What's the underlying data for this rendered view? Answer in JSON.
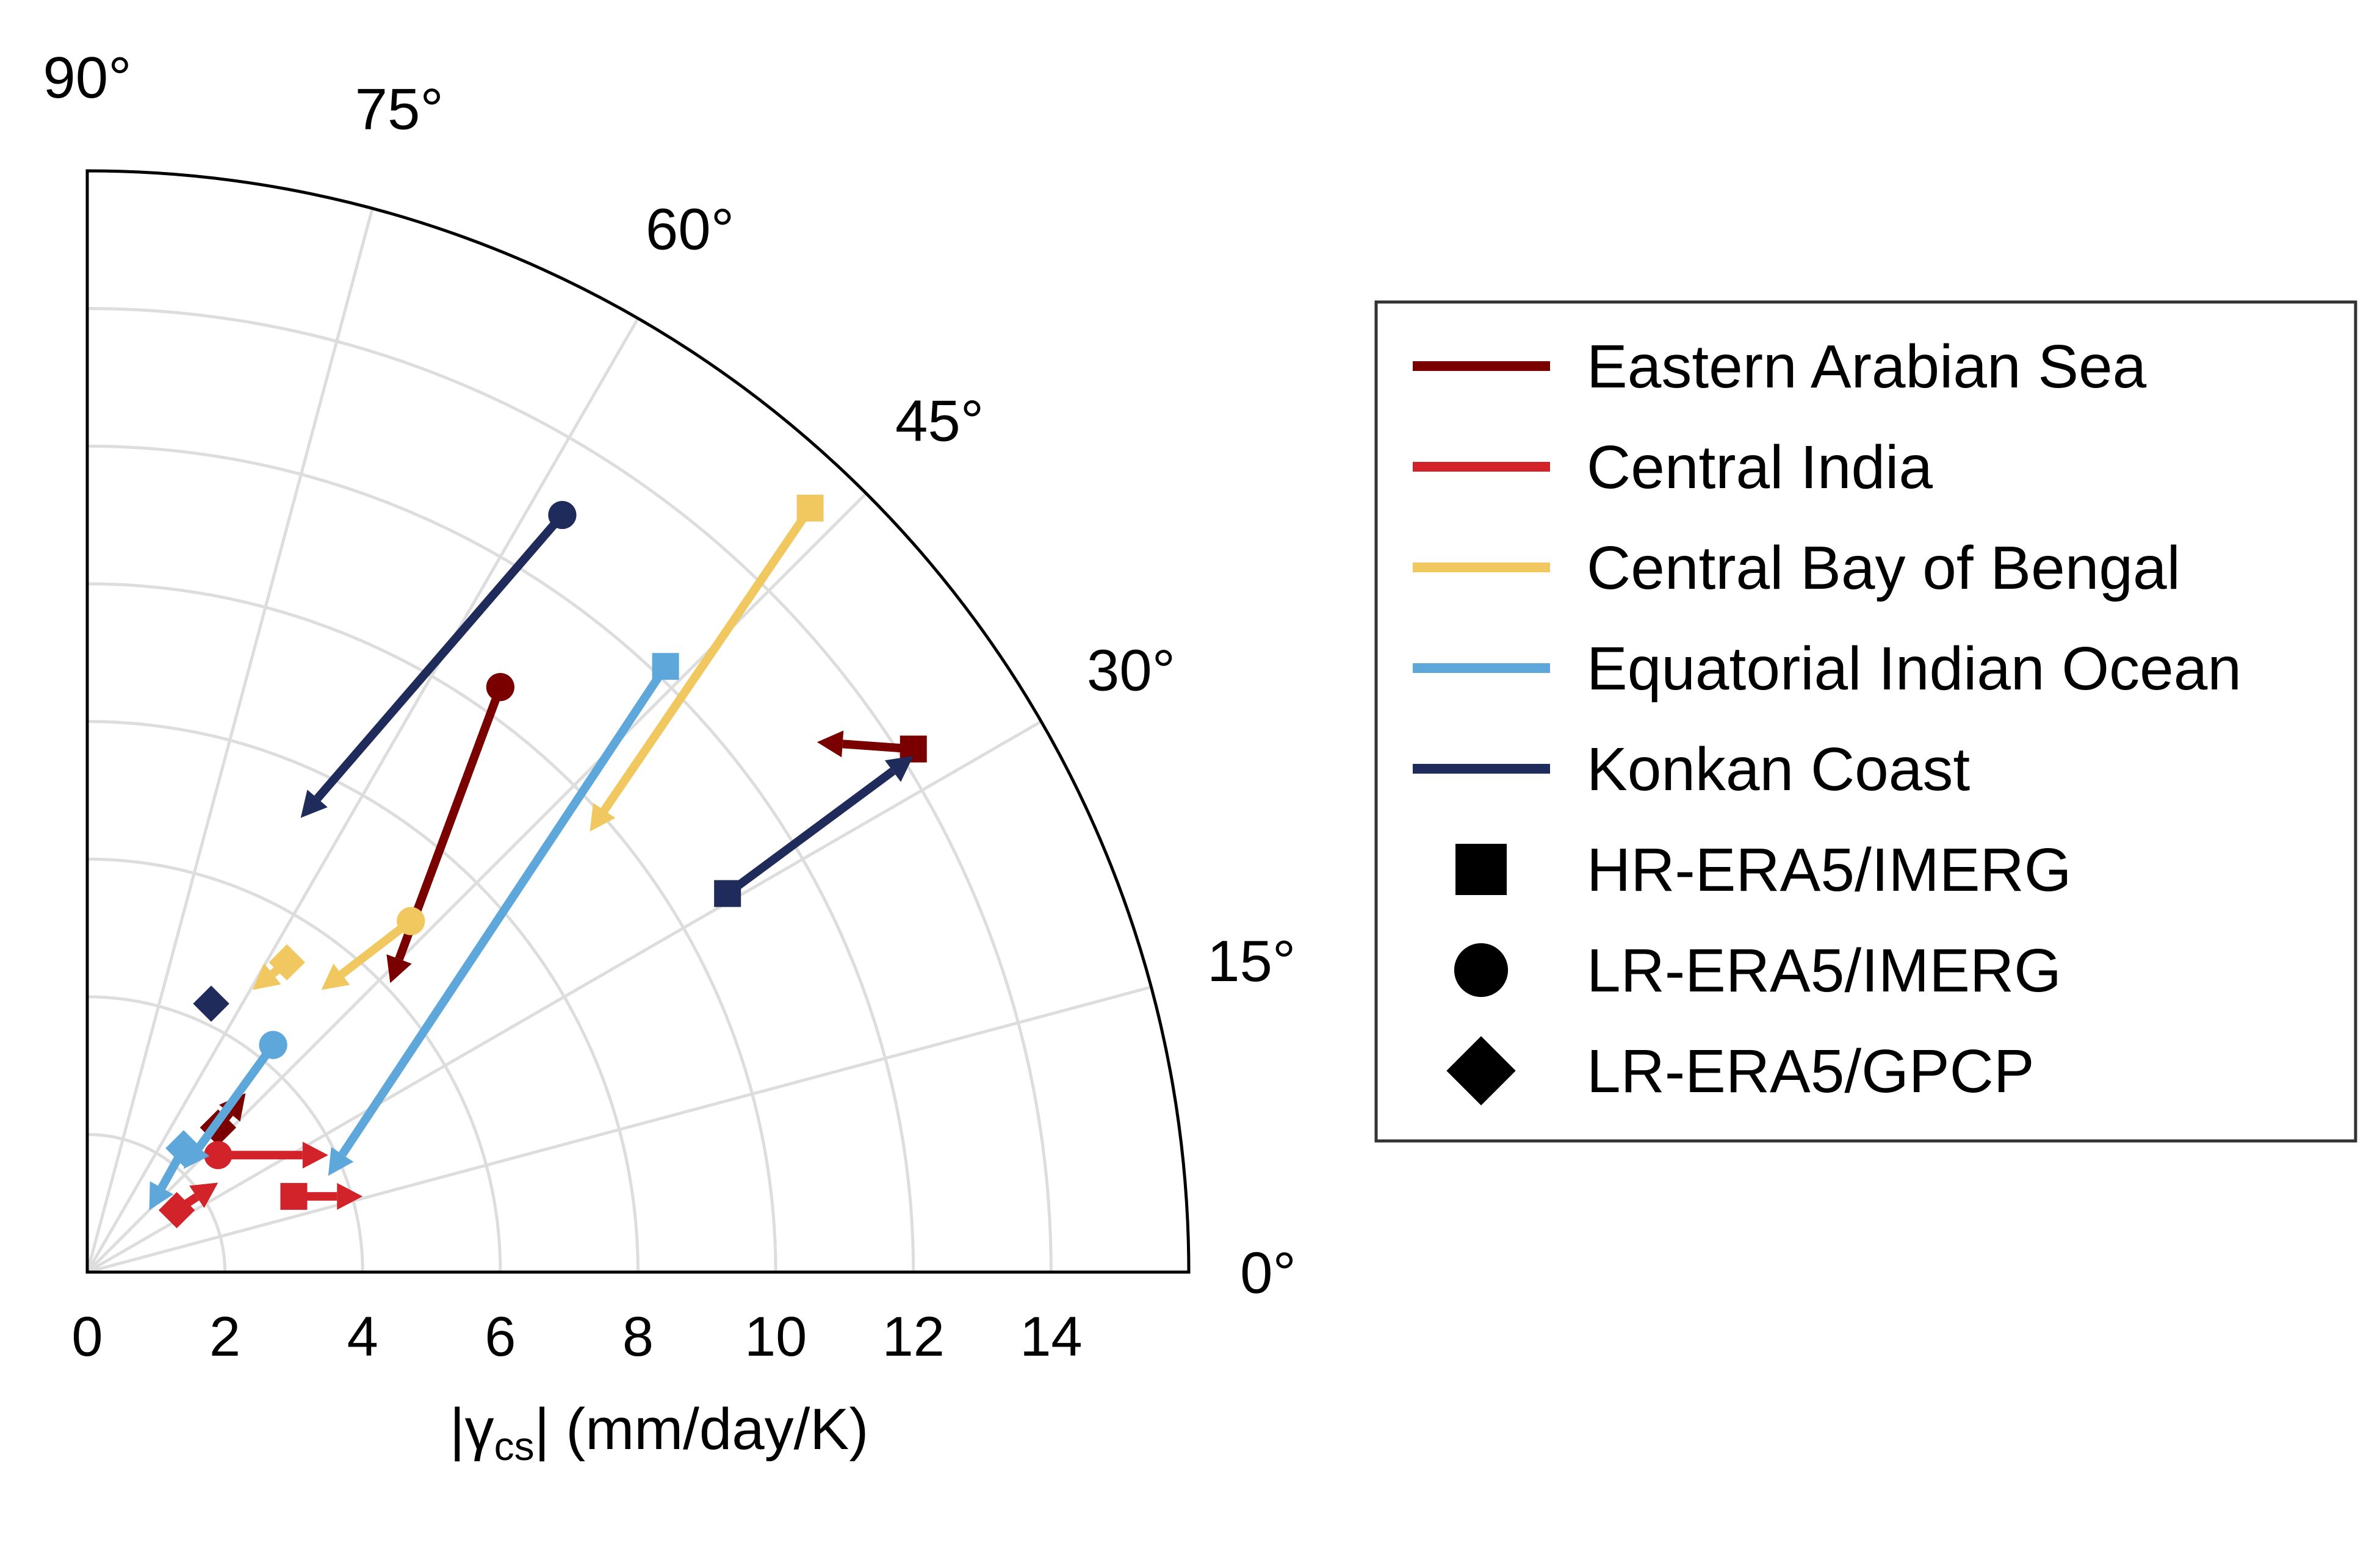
{
  "chart_data": {
    "type": "scatter",
    "subtype": "polar-quadrant-arrows",
    "xlabel_prefix": "|γ",
    "xlabel_sub": "cs",
    "xlabel_suffix": "| (mm/day/K)",
    "rlim": [
      0,
      16
    ],
    "rticks": [
      0,
      2,
      4,
      6,
      8,
      10,
      12,
      14
    ],
    "rtick_labels": [
      "0",
      "2",
      "4",
      "6",
      "8",
      "10",
      "12",
      "14"
    ],
    "angle_ticks": [
      0,
      15,
      30,
      45,
      60,
      75,
      90
    ],
    "angle_labels": [
      "0°",
      "15°",
      "30°",
      "45°",
      "60°",
      "75°",
      "90°"
    ],
    "grid": true,
    "legend_position": "right",
    "series": [
      {
        "name": "Eastern Arabian Sea",
        "color": "#7a0000",
        "points": [
          {
            "marker": "square",
            "x": 12.0,
            "y": 7.6,
            "arrow_to": [
              10.6,
              7.7
            ]
          },
          {
            "marker": "circle",
            "x": 6.0,
            "y": 8.5,
            "arrow_to": [
              4.4,
              4.2
            ]
          },
          {
            "marker": "diamond",
            "x": 1.9,
            "y": 2.1,
            "arrow_to": [
              2.3,
              2.6
            ]
          }
        ]
      },
      {
        "name": "Central India",
        "color": "#d2232a",
        "points": [
          {
            "marker": "square",
            "x": 3.0,
            "y": 1.1,
            "arrow_to": [
              4.0,
              1.1
            ]
          },
          {
            "marker": "circle",
            "x": 1.9,
            "y": 1.7,
            "arrow_to": [
              3.5,
              1.7
            ]
          },
          {
            "marker": "diamond",
            "x": 1.3,
            "y": 0.9,
            "arrow_to": [
              1.9,
              1.3
            ]
          }
        ]
      },
      {
        "name": "Central Bay of Bengal",
        "color": "#f1c75f",
        "points": [
          {
            "marker": "square",
            "x": 10.5,
            "y": 11.1,
            "arrow_to": [
              7.3,
              6.4
            ]
          },
          {
            "marker": "circle",
            "x": 4.7,
            "y": 5.1,
            "arrow_to": [
              3.4,
              4.1
            ]
          },
          {
            "marker": "diamond",
            "x": 2.9,
            "y": 4.5,
            "arrow_to": [
              2.4,
              4.1
            ]
          }
        ]
      },
      {
        "name": "Equatorial Indian Ocean",
        "color": "#5ea7db",
        "points": [
          {
            "marker": "square",
            "x": 8.4,
            "y": 8.8,
            "arrow_to": [
              3.5,
              1.4
            ]
          },
          {
            "marker": "circle",
            "x": 2.7,
            "y": 3.3,
            "arrow_to": [
              1.4,
              1.5
            ]
          },
          {
            "marker": "diamond",
            "x": 1.4,
            "y": 1.8,
            "arrow_to": [
              0.9,
              0.9
            ]
          }
        ]
      },
      {
        "name": "Konkan Coast",
        "color": "#1e2b5b",
        "points": [
          {
            "marker": "square",
            "x": 9.3,
            "y": 5.5,
            "arrow_to": [
              12.0,
              7.5
            ]
          },
          {
            "marker": "circle",
            "x": 6.9,
            "y": 11.0,
            "arrow_to": [
              3.1,
              6.6
            ]
          },
          {
            "marker": "diamond",
            "x": 1.8,
            "y": 3.9,
            "arrow_to": null
          }
        ]
      }
    ],
    "marker_legend": [
      {
        "marker": "square",
        "label": "HR-ERA5/IMERG"
      },
      {
        "marker": "circle",
        "label": "LR-ERA5/IMERG"
      },
      {
        "marker": "diamond",
        "label": "LR-ERA5/GPCP"
      }
    ]
  }
}
